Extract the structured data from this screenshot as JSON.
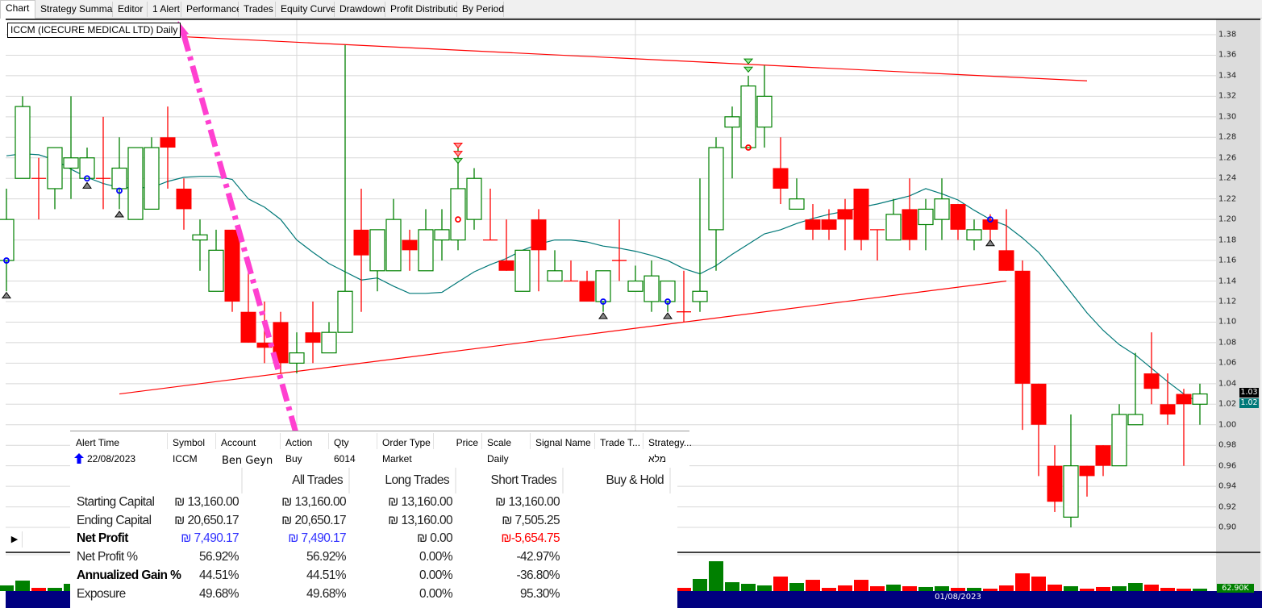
{
  "tabs": [
    {
      "label": "Chart",
      "active": true
    },
    {
      "label": "Strategy Summary"
    },
    {
      "label": "Editor"
    },
    {
      "label": "1 Alert"
    },
    {
      "label": "Performance"
    },
    {
      "label": "Trades"
    },
    {
      "label": "Equity Curve"
    },
    {
      "label": "Drawdown"
    },
    {
      "label": "Profit Distribution"
    },
    {
      "label": "By Period"
    }
  ],
  "chart_title": "ICCM (ICECURE MEDICAL LTD) Daily",
  "colors": {
    "up": "#008000",
    "down": "#ff0000",
    "ma": "#007878",
    "trendline": "#ff0000",
    "annotation": "#ff40d0",
    "date_bar": "#000080",
    "axis_panel": "#dcdcdc"
  },
  "chart_data": {
    "type": "candlestick",
    "ylim": [
      0.88,
      1.39
    ],
    "y_ticks": [
      "1.38",
      "1.36",
      "1.34",
      "1.32",
      "1.30",
      "1.28",
      "1.26",
      "1.24",
      "1.22",
      "1.20",
      "1.18",
      "1.16",
      "1.14",
      "1.12",
      "1.10",
      "1.08",
      "1.06",
      "1.04",
      "1.02",
      "1.00",
      "0.98",
      "0.96",
      "0.94",
      "0.92",
      "0.90"
    ],
    "x_tick_labels": [
      {
        "index": 59,
        "label": "01/08/2023"
      }
    ],
    "vertical_grid_indices": [
      18,
      39,
      59
    ],
    "grid": true,
    "fields": [
      "open",
      "high",
      "low",
      "close"
    ],
    "candles": [
      [
        1.16,
        1.23,
        1.13,
        1.2
      ],
      [
        1.24,
        1.32,
        1.24,
        1.31
      ],
      [
        1.24,
        1.26,
        1.2,
        1.24
      ],
      [
        1.23,
        1.27,
        1.21,
        1.27
      ],
      [
        1.25,
        1.32,
        1.22,
        1.26
      ],
      [
        1.24,
        1.27,
        1.24,
        1.26
      ],
      [
        1.24,
        1.3,
        1.21,
        1.24
      ],
      [
        1.23,
        1.28,
        1.21,
        1.25
      ],
      [
        1.2,
        1.27,
        1.2,
        1.27
      ],
      [
        1.21,
        1.28,
        1.21,
        1.27
      ],
      [
        1.28,
        1.31,
        1.23,
        1.27
      ],
      [
        1.23,
        1.24,
        1.19,
        1.21
      ],
      [
        1.18,
        1.2,
        1.15,
        1.185
      ],
      [
        1.13,
        1.19,
        1.13,
        1.17
      ],
      [
        1.19,
        1.19,
        1.11,
        1.12
      ],
      [
        1.11,
        1.15,
        1.08,
        1.08
      ],
      [
        1.08,
        1.12,
        1.06,
        1.075
      ],
      [
        1.1,
        1.11,
        1.05,
        1.06
      ],
      [
        1.06,
        1.09,
        1.05,
        1.07
      ],
      [
        1.09,
        1.12,
        1.06,
        1.08
      ],
      [
        1.07,
        1.1,
        1.07,
        1.09
      ],
      [
        1.09,
        1.37,
        1.09,
        1.13
      ],
      [
        1.19,
        1.23,
        1.11,
        1.165
      ],
      [
        1.15,
        1.19,
        1.13,
        1.19
      ],
      [
        1.15,
        1.22,
        1.15,
        1.2
      ],
      [
        1.18,
        1.19,
        1.15,
        1.17
      ],
      [
        1.15,
        1.21,
        1.15,
        1.19
      ],
      [
        1.18,
        1.21,
        1.16,
        1.19
      ],
      [
        1.18,
        1.27,
        1.17,
        1.23
      ],
      [
        1.2,
        1.25,
        1.19,
        1.24
      ],
      [
        1.18,
        1.23,
        1.18,
        1.18
      ],
      [
        1.16,
        1.2,
        1.15,
        1.15
      ],
      [
        1.13,
        1.17,
        1.13,
        1.17
      ],
      [
        1.2,
        1.21,
        1.13,
        1.17
      ],
      [
        1.14,
        1.17,
        1.14,
        1.15
      ],
      [
        1.14,
        1.16,
        1.14,
        1.14
      ],
      [
        1.14,
        1.15,
        1.12,
        1.12
      ],
      [
        1.12,
        1.15,
        1.11,
        1.15
      ],
      [
        1.16,
        1.2,
        1.14,
        1.16
      ],
      [
        1.13,
        1.155,
        1.13,
        1.14
      ],
      [
        1.12,
        1.16,
        1.11,
        1.145
      ],
      [
        1.12,
        1.14,
        1.11,
        1.14
      ],
      [
        1.11,
        1.15,
        1.1,
        1.11
      ],
      [
        1.12,
        1.24,
        1.11,
        1.13
      ],
      [
        1.19,
        1.28,
        1.15,
        1.27
      ],
      [
        1.29,
        1.31,
        1.24,
        1.3
      ],
      [
        1.27,
        1.34,
        1.27,
        1.33
      ],
      [
        1.29,
        1.35,
        1.27,
        1.32
      ],
      [
        1.25,
        1.28,
        1.215,
        1.23
      ],
      [
        1.21,
        1.24,
        1.21,
        1.22
      ],
      [
        1.2,
        1.215,
        1.18,
        1.19
      ],
      [
        1.2,
        1.21,
        1.18,
        1.19
      ],
      [
        1.21,
        1.22,
        1.17,
        1.2
      ],
      [
        1.23,
        1.23,
        1.17,
        1.18
      ],
      [
        1.19,
        1.19,
        1.16,
        1.19
      ],
      [
        1.18,
        1.22,
        1.18,
        1.205
      ],
      [
        1.21,
        1.24,
        1.17,
        1.18
      ],
      [
        1.195,
        1.22,
        1.17,
        1.21
      ],
      [
        1.2,
        1.24,
        1.18,
        1.22
      ],
      [
        1.215,
        1.215,
        1.18,
        1.19
      ],
      [
        1.18,
        1.2,
        1.17,
        1.19
      ],
      [
        1.2,
        1.205,
        1.18,
        1.19
      ],
      [
        1.17,
        1.21,
        1.15,
        1.15
      ],
      [
        1.15,
        1.16,
        0.995,
        1.04
      ],
      [
        1.04,
        1.04,
        0.95,
        1.0
      ],
      [
        0.96,
        0.98,
        0.915,
        0.925
      ],
      [
        0.91,
        1.01,
        0.9,
        0.96
      ],
      [
        0.96,
        0.96,
        0.93,
        0.95
      ],
      [
        0.98,
        0.98,
        0.95,
        0.96
      ],
      [
        0.96,
        1.02,
        0.96,
        1.01
      ],
      [
        1.0,
        1.07,
        1.0,
        1.01
      ],
      [
        1.05,
        1.09,
        1.02,
        1.035
      ],
      [
        1.02,
        1.05,
        1.0,
        1.01
      ],
      [
        1.03,
        1.035,
        0.96,
        1.02
      ],
      [
        1.02,
        1.04,
        1.0,
        1.03
      ]
    ],
    "moving_average": [
      1.262,
      1.264,
      1.263,
      1.258,
      1.249,
      1.241,
      1.235,
      1.231,
      1.231,
      1.231,
      1.237,
      1.241,
      1.242,
      1.242,
      1.239,
      1.22,
      1.212,
      1.2,
      1.18,
      1.168,
      1.157,
      1.149,
      1.141,
      1.143,
      1.135,
      1.128,
      1.128,
      1.129,
      1.139,
      1.149,
      1.156,
      1.162,
      1.17,
      1.176,
      1.18,
      1.18,
      1.178,
      1.174,
      1.172,
      1.169,
      1.165,
      1.16,
      1.152,
      1.147,
      1.155,
      1.166,
      1.176,
      1.186,
      1.19,
      1.196,
      1.201,
      1.205,
      1.208,
      1.212,
      1.215,
      1.219,
      1.223,
      1.23,
      1.225,
      1.219,
      1.209,
      1.2,
      1.194,
      1.182,
      1.168,
      1.149,
      1.129,
      1.109,
      1.092,
      1.078,
      1.068,
      1.055,
      1.042,
      1.03,
      1.021
    ],
    "trendlines": [
      {
        "from": {
          "index": 11,
          "price": 1.378
        },
        "to": {
          "index": 67,
          "price": 1.335
        }
      },
      {
        "from": {
          "index": 7,
          "price": 1.03
        },
        "to": {
          "index": 62,
          "price": 1.14
        }
      }
    ],
    "markers": [
      {
        "index": 0,
        "price": 1.16,
        "type": "blue-circle"
      },
      {
        "index": 0,
        "price": 1.125,
        "type": "grey-up-triangle"
      },
      {
        "index": 5,
        "price": 1.24,
        "type": "blue-circle"
      },
      {
        "index": 5,
        "price": 1.232,
        "type": "grey-up-triangle"
      },
      {
        "index": 7,
        "price": 1.228,
        "type": "blue-circle"
      },
      {
        "index": 7,
        "price": 1.204,
        "type": "grey-up-triangle"
      },
      {
        "index": 28,
        "price": 1.2,
        "type": "red-circle"
      },
      {
        "index": 28,
        "price": 1.272,
        "type": "red-down-triangle"
      },
      {
        "index": 28,
        "price": 1.264,
        "type": "red-down-triangle"
      },
      {
        "index": 28,
        "price": 1.257,
        "type": "green-down-triangle"
      },
      {
        "index": 37,
        "price": 1.12,
        "type": "blue-circle"
      },
      {
        "index": 37,
        "price": 1.105,
        "type": "grey-up-triangle"
      },
      {
        "index": 41,
        "price": 1.12,
        "type": "blue-circle"
      },
      {
        "index": 41,
        "price": 1.105,
        "type": "grey-up-triangle"
      },
      {
        "index": 46,
        "price": 1.27,
        "type": "red-circle"
      },
      {
        "index": 46,
        "price": 1.354,
        "type": "green-down-triangle"
      },
      {
        "index": 46,
        "price": 1.346,
        "type": "green-down-triangle"
      },
      {
        "index": 61,
        "price": 1.2,
        "type": "blue-circle"
      },
      {
        "index": 61,
        "price": 1.176,
        "type": "grey-up-triangle"
      }
    ],
    "last_price_label": "1.03",
    "ma_label": "1.02",
    "volume_k": [
      148,
      274,
      84,
      84,
      190,
      null,
      null,
      null,
      null,
      null,
      null,
      null,
      null,
      null,
      null,
      null,
      null,
      null,
      null,
      null,
      null,
      null,
      null,
      null,
      null,
      null,
      null,
      null,
      null,
      null,
      null,
      null,
      null,
      null,
      null,
      null,
      null,
      null,
      null,
      null,
      null,
      null,
      84,
      317,
      781,
      232,
      190,
      148,
      380,
      211,
      295,
      84,
      148,
      295,
      127,
      169,
      127,
      106,
      127,
      84,
      84,
      63,
      148,
      464,
      380,
      169,
      127,
      63,
      106,
      127,
      211,
      169,
      84,
      63,
      62.9
    ],
    "volume_ylim_k": [
      0,
      950
    ],
    "volume_label": "62.90K"
  },
  "alert": {
    "headers": [
      "Alert Time",
      "Symbol",
      "Account",
      "Action",
      "Qty",
      "Order Type",
      "Price",
      "Scale",
      "Signal Name",
      "Trade T...",
      "Strategy..."
    ],
    "row": {
      "time": "22/08/2023",
      "symbol": "ICCM",
      "account": "Ben Geyn",
      "action": "Buy",
      "qty": "6014",
      "order_type": "Market",
      "price": "",
      "scale": "Daily",
      "signal_name": "",
      "trade_type": "",
      "strategy": "מלא"
    }
  },
  "stats": {
    "columns": [
      "All Trades",
      "Long Trades",
      "Short Trades",
      "Buy & Hold"
    ],
    "rows": [
      {
        "label": "Starting Capital",
        "values": [
          "₪ 13,160.00",
          "₪ 13,160.00",
          "₪ 13,160.00",
          "₪ 13,160.00"
        ]
      },
      {
        "label": "Ending Capital",
        "values": [
          "₪ 20,650.17",
          "₪ 20,650.17",
          "₪ 13,160.00",
          "₪ 7,505.25"
        ]
      },
      {
        "label": "Net Profit",
        "values": [
          "₪ 7,490.17",
          "₪ 7,490.17",
          "₪ 0.00",
          "₪-5,654.75"
        ]
      },
      {
        "label": "Net Profit %",
        "values": [
          "56.92%",
          "56.92%",
          "0.00%",
          "-42.97%"
        ]
      },
      {
        "label": "Annualized Gain %",
        "values": [
          "44.51%",
          "44.51%",
          "0.00%",
          "-36.80%"
        ]
      },
      {
        "label": "Exposure",
        "values": [
          "49.68%",
          "49.68%",
          "0.00%",
          "95.30%"
        ]
      }
    ]
  },
  "play_button": "▶"
}
